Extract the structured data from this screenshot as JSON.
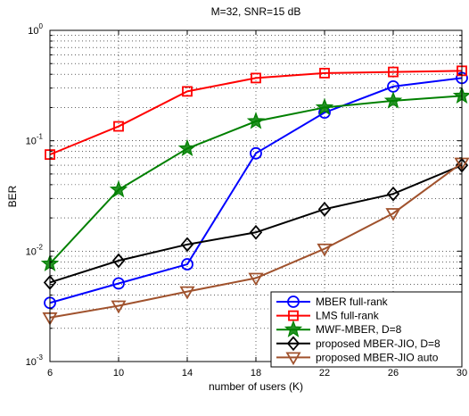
{
  "chart_data": {
    "type": "line",
    "title": "M=32, SNR=15 dB",
    "xlabel": "number of users (K)",
    "ylabel": "BER",
    "x": [
      6,
      10,
      14,
      18,
      22,
      26,
      30
    ],
    "xlim": [
      6,
      30
    ],
    "ylim": [
      0.001,
      1
    ],
    "yscale": "log",
    "x_ticks": [
      "6",
      "10",
      "14",
      "18",
      "22",
      "26",
      "30"
    ],
    "y_ticks": [
      {
        "base": "10",
        "exp": "0"
      },
      {
        "base": "10",
        "exp": "-1"
      },
      {
        "base": "10",
        "exp": "-2"
      },
      {
        "base": "10",
        "exp": "-3"
      }
    ],
    "grid": true,
    "legend_position": "bottom-right",
    "series": [
      {
        "name": "MBER full-rank",
        "color": "#0000ff",
        "marker": "circle",
        "values": [
          0.0034,
          0.0051,
          0.0076,
          0.077,
          0.18,
          0.31,
          0.37
        ]
      },
      {
        "name": "LMS full-rank",
        "color": "#ff0000",
        "marker": "square",
        "values": [
          0.075,
          0.135,
          0.28,
          0.37,
          0.41,
          0.42,
          0.43
        ]
      },
      {
        "name": "MWF-MBER, D=8",
        "color": "#008000",
        "marker": "star",
        "values": [
          0.0077,
          0.036,
          0.085,
          0.15,
          0.2,
          0.23,
          0.255
        ]
      },
      {
        "name": "proposed MBER-JIO, D=8",
        "color": "#000000",
        "marker": "diamond",
        "values": [
          0.0052,
          0.0082,
          0.0115,
          0.0148,
          0.024,
          0.033,
          0.06
        ]
      },
      {
        "name": "proposed MBER-JIO auto",
        "color": "#a0522d",
        "marker": "triangle-down",
        "values": [
          0.0025,
          0.0032,
          0.0043,
          0.0057,
          0.0105,
          0.022,
          0.063
        ]
      }
    ]
  }
}
